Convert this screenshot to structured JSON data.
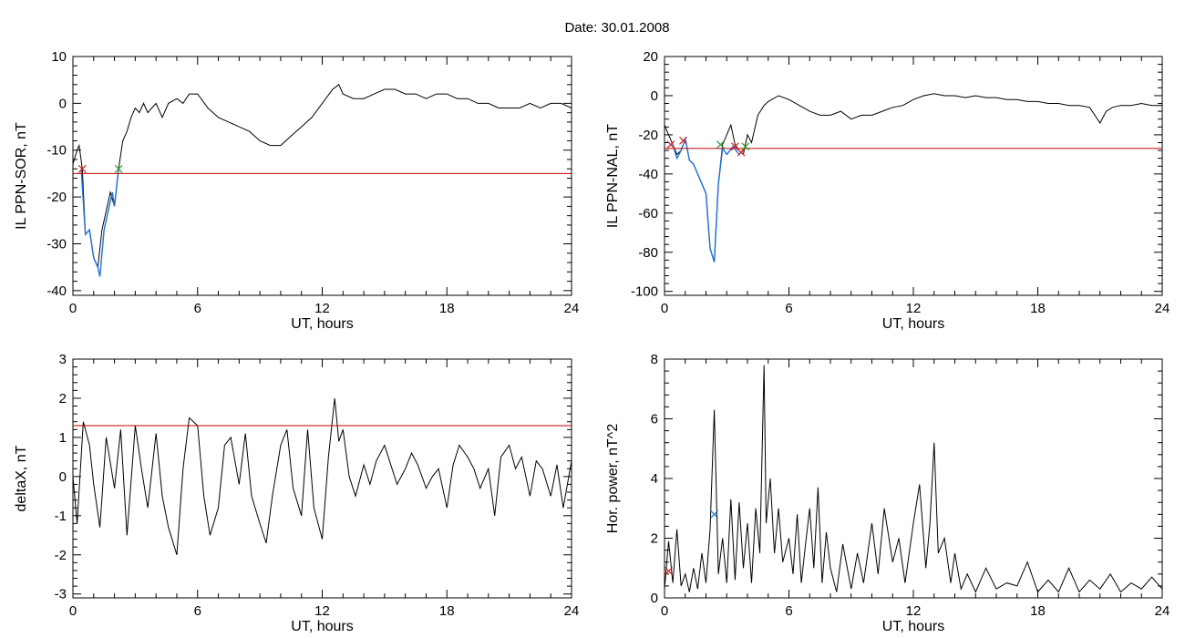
{
  "title": "Date:  30.01.2008",
  "chart_data": [
    {
      "type": "line",
      "xlabel": "UT, hours",
      "ylabel": "IL PPN-SOR, nT",
      "xlim": [
        0,
        24
      ],
      "ylim": [
        -41,
        10
      ],
      "xticks": [
        0,
        6,
        12,
        18,
        24
      ],
      "yticks": [
        10,
        0,
        -10,
        -20,
        -30,
        -40
      ],
      "threshold": -15,
      "grid": false,
      "series": [
        {
          "color": "#000000",
          "x": [
            0,
            0.2,
            0.3,
            0.45,
            0.6,
            0.8,
            1.0,
            1.2,
            1.4,
            1.6,
            1.8,
            2.0,
            2.2,
            2.4,
            2.6,
            2.8,
            3.0,
            3.2,
            3.4,
            3.6,
            3.8,
            4.0,
            4.3,
            4.6,
            5.0,
            5.3,
            5.6,
            6.0,
            6.5,
            7.0,
            7.5,
            8.0,
            8.5,
            9.0,
            9.5,
            10.0,
            10.5,
            11.0,
            11.5,
            12.0,
            12.5,
            12.8,
            13.0,
            13.5,
            14.0,
            14.5,
            15.0,
            15.5,
            16.0,
            16.5,
            17.0,
            17.5,
            18.0,
            18.5,
            19.0,
            19.5,
            20.0,
            20.5,
            21.0,
            21.5,
            22.0,
            22.5,
            23.0,
            23.5,
            24.0
          ],
          "y": [
            -13,
            -10,
            -9,
            -14,
            -28,
            -27,
            -33,
            -35,
            -27,
            -23,
            -19,
            -22,
            -14,
            -8,
            -6,
            -3,
            -1,
            -2,
            0,
            -2,
            -1,
            0,
            -3,
            0,
            1,
            0,
            2,
            2,
            -1,
            -3,
            -4,
            -5,
            -6,
            -8,
            -9,
            -9,
            -7,
            -5,
            -3,
            0,
            3,
            4,
            2,
            1,
            1,
            2,
            3,
            3,
            2,
            2,
            1,
            2,
            2,
            1,
            1,
            0,
            0,
            -1,
            -1,
            -1,
            0,
            -1,
            0,
            0,
            -1
          ]
        },
        {
          "color": "#1f6fd6",
          "x": [
            0.4,
            0.6,
            0.8,
            1.0,
            1.2,
            1.3,
            1.5,
            1.7,
            1.9,
            2.0,
            2.2
          ],
          "y": [
            -14,
            -28,
            -27,
            -33,
            -35,
            -37,
            -27,
            -23,
            -19,
            -22,
            -14
          ]
        }
      ],
      "markers": [
        {
          "x": 0.45,
          "y": -14,
          "color": "#d62020"
        },
        {
          "x": 2.2,
          "y": -14,
          "color": "#2ca02c"
        }
      ]
    },
    {
      "type": "line",
      "xlabel": "UT, hours",
      "ylabel": "IL PPN-NAL, nT",
      "xlim": [
        0,
        24
      ],
      "ylim": [
        -102,
        20
      ],
      "xticks": [
        0,
        6,
        12,
        18,
        24
      ],
      "yticks": [
        20,
        0,
        -20,
        -40,
        -60,
        -80,
        -100
      ],
      "threshold": -27,
      "grid": false,
      "series": [
        {
          "color": "#000000",
          "x": [
            0,
            0.2,
            0.4,
            0.6,
            0.8,
            1.0,
            1.2,
            1.4,
            1.6,
            1.8,
            2.0,
            2.2,
            2.4,
            2.6,
            2.8,
            3.0,
            3.2,
            3.4,
            3.6,
            3.8,
            4.0,
            4.2,
            4.5,
            4.8,
            5.0,
            5.5,
            6.0,
            6.5,
            7.0,
            7.5,
            8.0,
            8.5,
            9.0,
            9.5,
            10.0,
            10.5,
            11.0,
            11.5,
            12.0,
            12.5,
            13.0,
            13.5,
            14.0,
            14.5,
            15.0,
            15.5,
            16.0,
            16.5,
            17.0,
            17.5,
            18.0,
            18.5,
            19.0,
            19.5,
            20.0,
            20.5,
            21.0,
            21.3,
            21.6,
            22.0,
            22.5,
            23.0,
            23.5,
            24.0
          ],
          "y": [
            -15,
            -20,
            -25,
            -30,
            -28,
            -22,
            -33,
            -35,
            -40,
            -45,
            -50,
            -78,
            -85,
            -45,
            -25,
            -20,
            -15,
            -25,
            -28,
            -30,
            -20,
            -24,
            -10,
            -5,
            -3,
            0,
            -2,
            -5,
            -8,
            -10,
            -10,
            -8,
            -12,
            -10,
            -10,
            -8,
            -6,
            -5,
            -2,
            0,
            1,
            0,
            0,
            -1,
            0,
            -1,
            -1,
            -2,
            -2,
            -3,
            -3,
            -4,
            -4,
            -5,
            -5,
            -6,
            -14,
            -8,
            -6,
            -5,
            -5,
            -4,
            -5,
            -5
          ]
        },
        {
          "color": "#1f6fd6",
          "x": [
            0.4,
            0.6,
            0.8,
            1.0,
            1.2,
            1.4,
            1.6,
            1.8,
            2.0,
            2.2,
            2.4,
            2.6,
            2.8,
            3.0,
            3.3,
            3.6,
            3.8
          ],
          "y": [
            -25,
            -32,
            -28,
            -22,
            -33,
            -35,
            -40,
            -45,
            -50,
            -78,
            -85,
            -45,
            -27,
            -30,
            -26,
            -30,
            -28
          ]
        }
      ],
      "markers": [
        {
          "x": 0.3,
          "y": -25,
          "color": "#d62020"
        },
        {
          "x": 0.9,
          "y": -23,
          "color": "#d62020"
        },
        {
          "x": 2.7,
          "y": -25,
          "color": "#2ca02c"
        },
        {
          "x": 3.4,
          "y": -26,
          "color": "#d62020"
        },
        {
          "x": 3.7,
          "y": -29,
          "color": "#d62020"
        },
        {
          "x": 3.9,
          "y": -26,
          "color": "#2ca02c"
        }
      ]
    },
    {
      "type": "line",
      "xlabel": "UT, hours",
      "ylabel": "deltaX, nT",
      "xlim": [
        0,
        24
      ],
      "ylim": [
        -3.1,
        3
      ],
      "xticks": [
        0,
        6,
        12,
        18,
        24
      ],
      "yticks": [
        3,
        2,
        1,
        0,
        -1,
        -2,
        -3
      ],
      "threshold": 1.3,
      "grid": false,
      "series": [
        {
          "color": "#000000",
          "x": [
            0,
            0.2,
            0.5,
            0.8,
            1.0,
            1.3,
            1.6,
            2.0,
            2.3,
            2.6,
            3.0,
            3.3,
            3.6,
            4.0,
            4.3,
            4.6,
            5.0,
            5.3,
            5.6,
            6.0,
            6.3,
            6.6,
            7.0,
            7.3,
            7.6,
            8.0,
            8.3,
            8.6,
            9.0,
            9.3,
            9.6,
            10.0,
            10.3,
            10.6,
            11.0,
            11.3,
            11.6,
            12.0,
            12.3,
            12.6,
            12.8,
            13.0,
            13.3,
            13.6,
            14.0,
            14.3,
            14.6,
            15.0,
            15.3,
            15.6,
            16.0,
            16.3,
            16.6,
            17.0,
            17.3,
            17.6,
            18.0,
            18.3,
            18.6,
            19.0,
            19.3,
            19.6,
            20.0,
            20.3,
            20.6,
            21.0,
            21.3,
            21.6,
            22.0,
            22.3,
            22.6,
            23.0,
            23.3,
            23.6,
            24.0
          ],
          "y": [
            0,
            -1.2,
            1.4,
            0.8,
            -0.2,
            -1.3,
            1.0,
            -0.3,
            1.2,
            -1.5,
            1.3,
            0.2,
            -0.8,
            1.1,
            -0.5,
            -1.3,
            -2.0,
            0.2,
            1.5,
            1.3,
            -0.5,
            -1.5,
            -0.8,
            0.8,
            1.0,
            -0.2,
            1.1,
            -0.5,
            -1.2,
            -1.7,
            -0.5,
            0.8,
            1.2,
            -0.3,
            -1.0,
            1.2,
            -0.8,
            -1.6,
            0.5,
            2.0,
            0.9,
            1.2,
            0.0,
            -0.5,
            0.3,
            -0.2,
            0.4,
            0.8,
            0.3,
            -0.2,
            0.2,
            0.6,
            0.3,
            -0.3,
            0.0,
            0.2,
            -0.8,
            0.3,
            0.8,
            0.5,
            0.2,
            -0.3,
            0.2,
            -1.0,
            0.5,
            0.8,
            0.2,
            0.5,
            -0.5,
            0.4,
            0.2,
            -0.5,
            0.3,
            -0.8,
            0.4
          ]
        }
      ],
      "markers": []
    },
    {
      "type": "line",
      "xlabel": "UT, hours",
      "ylabel": "Hor. power, nT^2",
      "xlim": [
        0,
        24
      ],
      "ylim": [
        0,
        8
      ],
      "xticks": [
        0,
        6,
        12,
        18,
        24
      ],
      "yticks": [
        8,
        6,
        4,
        2,
        0
      ],
      "grid": false,
      "series": [
        {
          "color": "#000000",
          "x": [
            0,
            0.2,
            0.4,
            0.6,
            0.8,
            1.0,
            1.2,
            1.4,
            1.6,
            1.8,
            2.0,
            2.2,
            2.4,
            2.6,
            2.8,
            3.0,
            3.2,
            3.4,
            3.6,
            3.8,
            4.0,
            4.2,
            4.4,
            4.6,
            4.8,
            4.9,
            5.1,
            5.3,
            5.5,
            5.7,
            6.0,
            6.2,
            6.4,
            6.6,
            6.8,
            7.0,
            7.2,
            7.4,
            7.6,
            7.8,
            8.0,
            8.3,
            8.6,
            9.0,
            9.3,
            9.6,
            10.0,
            10.3,
            10.6,
            11.0,
            11.3,
            11.6,
            12.0,
            12.3,
            12.6,
            12.8,
            13.0,
            13.2,
            13.5,
            13.8,
            14.0,
            14.3,
            14.6,
            15.0,
            15.5,
            16.0,
            16.5,
            17.0,
            17.5,
            18.0,
            18.5,
            19.0,
            19.5,
            20.0,
            20.5,
            21.0,
            21.5,
            22.0,
            22.5,
            23.0,
            23.5,
            24.0
          ],
          "y": [
            0.3,
            1.9,
            0.5,
            2.3,
            0.4,
            0.8,
            0.2,
            1.0,
            0.3,
            1.5,
            0.5,
            2.3,
            6.3,
            0.8,
            2.0,
            0.5,
            3.3,
            0.6,
            3.2,
            1.0,
            2.5,
            0.5,
            3.0,
            1.5,
            7.8,
            2.5,
            4.0,
            1.5,
            3.0,
            1.2,
            2.0,
            0.8,
            2.8,
            0.5,
            1.8,
            3.0,
            1.0,
            3.7,
            0.5,
            2.2,
            1.0,
            0.2,
            1.8,
            0.3,
            1.5,
            0.5,
            2.5,
            0.8,
            3.0,
            1.2,
            2.0,
            0.5,
            2.5,
            3.8,
            1.0,
            2.5,
            5.2,
            1.5,
            2.0,
            0.5,
            1.5,
            0.3,
            0.8,
            0.2,
            1.0,
            0.3,
            0.5,
            0.4,
            1.2,
            0.2,
            0.6,
            0.2,
            1.0,
            0.2,
            0.6,
            0.3,
            0.8,
            0.2,
            0.5,
            0.3,
            0.7,
            0.3
          ]
        }
      ],
      "markers": [
        {
          "x": 0.2,
          "y": 0.9,
          "color": "#d62020"
        },
        {
          "x": 2.4,
          "y": 2.8,
          "color": "#1f6fd6"
        }
      ]
    }
  ]
}
